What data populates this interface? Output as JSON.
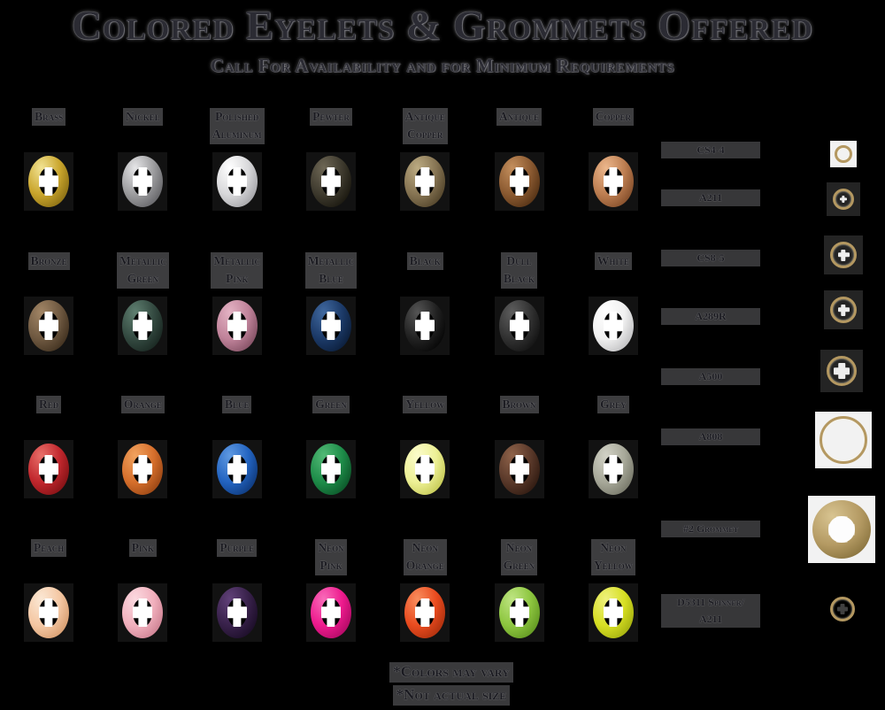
{
  "header": {
    "title": "Colored Eyelets & Grommets Offered",
    "subtitle": "Call For Availability and for Minimum Requirements"
  },
  "grid": {
    "rows": [
      {
        "items": [
          {
            "label": "Brass",
            "base": "#c9a52c",
            "light": "#f2e394",
            "dark": "#7c620f"
          },
          {
            "label": "Nickel",
            "base": "#9c9c9e",
            "light": "#e6e6e8",
            "dark": "#58585c"
          },
          {
            "label": "Polished\nAluminum",
            "base": "#d8d8da",
            "light": "#ffffff",
            "dark": "#98989c"
          },
          {
            "label": "Pewter",
            "base": "#3e3a2e",
            "light": "#6e6755",
            "dark": "#121008"
          },
          {
            "label": "Antique\nCopper",
            "base": "#867453",
            "light": "#bcab82",
            "dark": "#473a22"
          },
          {
            "label": "Antique",
            "base": "#8b5a31",
            "light": "#c48f5d",
            "dark": "#48290f"
          },
          {
            "label": "Copper",
            "base": "#bd7e51",
            "light": "#ecb78c",
            "dark": "#774322"
          }
        ]
      },
      {
        "items": [
          {
            "label": "Bronze",
            "base": "#6f5941",
            "light": "#a28666",
            "dark": "#362818"
          },
          {
            "label": "Metallic\nGreen",
            "base": "#344a41",
            "light": "#5f7f70",
            "dark": "#131f1a"
          },
          {
            "label": "Metallic\nPink",
            "base": "#c0839a",
            "light": "#e4b3c4",
            "dark": "#744457"
          },
          {
            "label": "Metallic\nBlue",
            "base": "#1c3a68",
            "light": "#41699f",
            "dark": "#081831"
          },
          {
            "label": "Black",
            "base": "#222222",
            "light": "#555555",
            "dark": "#000000"
          },
          {
            "label": "Dull\nBlack",
            "base": "#323232",
            "light": "#5e5e5e",
            "dark": "#0c0c0c"
          },
          {
            "label": "White",
            "base": "#f0f0f0",
            "light": "#ffffff",
            "dark": "#b4b4b6"
          }
        ]
      },
      {
        "items": [
          {
            "label": "Red",
            "base": "#c1272d",
            "light": "#e9706a",
            "dark": "#750d10"
          },
          {
            "label": "Orange",
            "base": "#d66f2c",
            "light": "#f2a35f",
            "dark": "#8a3c0f"
          },
          {
            "label": "Blue",
            "base": "#2364c1",
            "light": "#609ae2",
            "dark": "#0a2f6b"
          },
          {
            "label": "Green",
            "base": "#1e8c49",
            "light": "#52ba76",
            "dark": "#084a22"
          },
          {
            "label": "Yellow",
            "base": "#edf096",
            "light": "#fbfccb",
            "dark": "#bcc046"
          },
          {
            "label": "Brown",
            "base": "#5a392a",
            "light": "#8f634a",
            "dark": "#27140c"
          },
          {
            "label": "Grey",
            "base": "#a7a899",
            "light": "#d2d2c6",
            "dark": "#6b6c5e"
          }
        ]
      },
      {
        "items": [
          {
            "label": "Peach",
            "base": "#f4c7a3",
            "light": "#fbe8d5",
            "dark": "#cf9364"
          },
          {
            "label": "Pink",
            "base": "#f1b0bd",
            "light": "#fbd9e0",
            "dark": "#c57789"
          },
          {
            "label": "Purple",
            "base": "#38214a",
            "light": "#614179",
            "dark": "#150920"
          },
          {
            "label": "Neon\nPink",
            "base": "#ed1a8d",
            "light": "#f96cba",
            "dark": "#a3075c"
          },
          {
            "label": "Neon\nOrange",
            "base": "#e94b1f",
            "light": "#f98e5e",
            "dark": "#9f2a0a"
          },
          {
            "label": "Neon\nGreen",
            "base": "#8dc63f",
            "light": "#bfe583",
            "dark": "#578c1b"
          },
          {
            "label": "Neon\nYellow",
            "base": "#d7df23",
            "light": "#eef17e",
            "dark": "#98a40c"
          }
        ]
      }
    ]
  },
  "sizes": {
    "ring_color": "#b49861",
    "ring_light": "#e2d3a2",
    "grommet": {
      "base": "#b49a63",
      "light": "#d8c491",
      "dark": "#77632f"
    },
    "items": [
      {
        "label": "CS4-4",
        "diameter": 20
      },
      {
        "label": "A211",
        "diameter": 24
      },
      {
        "label": "CS8-5",
        "diameter": 30
      },
      {
        "label": "A289R",
        "diameter": 30
      },
      {
        "label": "A500",
        "diameter": 34
      },
      {
        "label": "A808",
        "diameter": 54
      },
      {
        "label": "#2 Grommet",
        "diameter": 66,
        "style": "grommet"
      },
      {
        "label": "D5311 Spinner/\nA211",
        "diameter": 28
      }
    ]
  },
  "footnotes": [
    "*Colors may vary",
    "*Not actual size"
  ]
}
